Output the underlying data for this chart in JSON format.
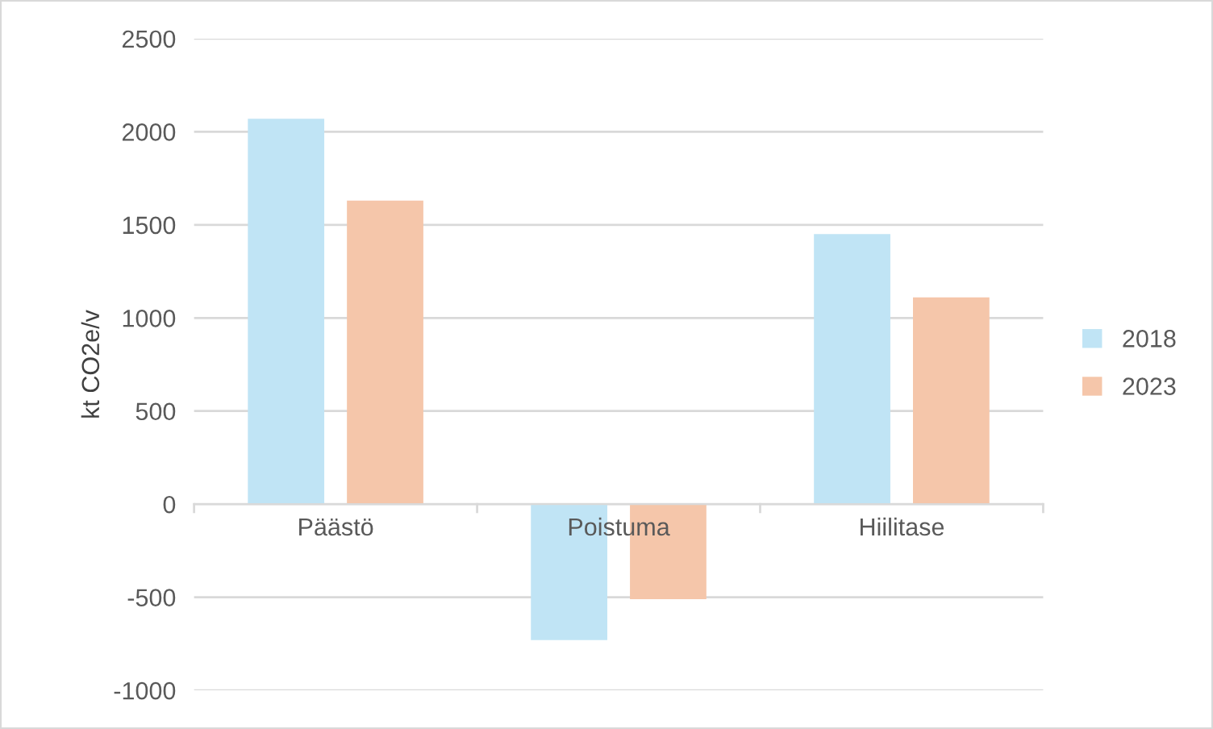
{
  "chart_data": {
    "type": "bar",
    "ylabel": "kt CO2e/v",
    "categories": [
      "Päästö",
      "Poistuma",
      "Hiilitase"
    ],
    "series": [
      {
        "name": "2018",
        "color": "#c0e4f5",
        "values": [
          2070,
          -730,
          1450
        ]
      },
      {
        "name": "2023",
        "color": "#f5c6aa",
        "values": [
          1630,
          -510,
          1110
        ]
      }
    ],
    "ylim": [
      -1000,
      2500
    ],
    "yticks": [
      {
        "value": -1000,
        "label": "-1000"
      },
      {
        "value": -500,
        "label": "-500"
      },
      0,
      500,
      1000,
      1500,
      2000,
      2500
    ],
    "grid": "y",
    "legend": "right"
  }
}
